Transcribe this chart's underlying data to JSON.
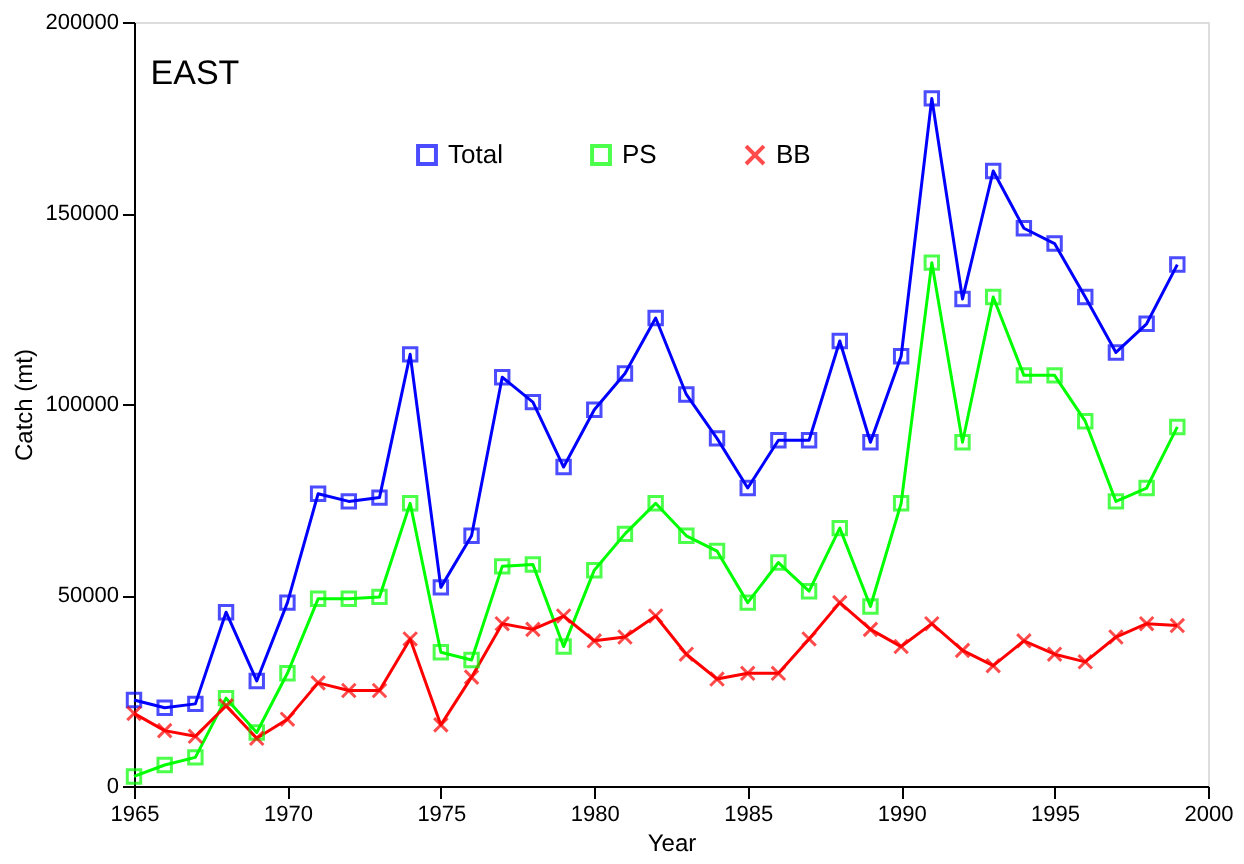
{
  "chart_data": {
    "type": "line",
    "title": "EAST",
    "xlabel": "Year",
    "ylabel": "Catch (mt)",
    "x": [
      1965,
      1966,
      1967,
      1968,
      1969,
      1970,
      1971,
      1972,
      1973,
      1974,
      1975,
      1976,
      1977,
      1978,
      1979,
      1980,
      1981,
      1982,
      1983,
      1984,
      1985,
      1986,
      1987,
      1988,
      1989,
      1990,
      1991,
      1992,
      1993,
      1994,
      1995,
      1996,
      1997,
      1998,
      1999
    ],
    "series": [
      {
        "name": "Total",
        "color": "#0000ff",
        "marker": "square",
        "values": [
          22500,
          20500,
          21500,
          45500,
          27500,
          48000,
          76500,
          74500,
          75500,
          113000,
          52000,
          65500,
          107000,
          100500,
          83500,
          98500,
          108000,
          122500,
          102500,
          91000,
          78000,
          90500,
          90500,
          116500,
          90000,
          112500,
          180000,
          127500,
          161000,
          146000,
          142000,
          128000,
          113500,
          121000,
          136500
        ]
      },
      {
        "name": "PS",
        "color": "#00ff00",
        "marker": "square",
        "values": [
          2500,
          5500,
          7500,
          23000,
          14000,
          29500,
          49000,
          49000,
          49500,
          74000,
          35000,
          33000,
          57500,
          58000,
          36500,
          56500,
          66000,
          74000,
          65500,
          61500,
          48000,
          58500,
          51000,
          67500,
          47000,
          74000,
          137000,
          90000,
          128000,
          107500,
          107500,
          95500,
          74500,
          78000,
          94000
        ]
      },
      {
        "name": "BB",
        "color": "#ff0000",
        "marker": "cross",
        "values": [
          19000,
          14500,
          13000,
          21000,
          12500,
          17500,
          27000,
          25000,
          25000,
          38500,
          16000,
          28500,
          42500,
          41000,
          44500,
          38000,
          39000,
          44500,
          34500,
          28000,
          29500,
          29500,
          38500,
          48000,
          41000,
          36500,
          42500,
          35500,
          31500,
          38000,
          34500,
          32500,
          39000,
          42500,
          42000
        ]
      }
    ],
    "xlim": [
      1965,
      2000
    ],
    "xticks": [
      1965,
      1970,
      1975,
      1980,
      1985,
      1990,
      1995,
      2000
    ],
    "ylim": [
      0,
      200000
    ],
    "yticks": [
      0,
      50000,
      100000,
      150000,
      200000
    ],
    "grid": false,
    "legend": "top"
  }
}
